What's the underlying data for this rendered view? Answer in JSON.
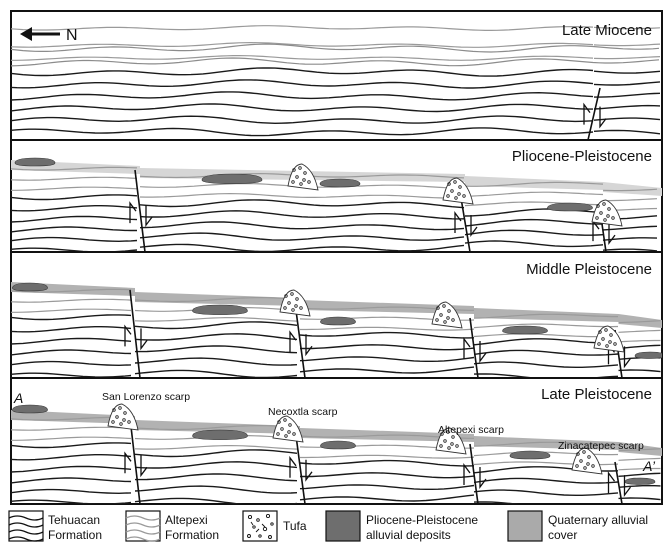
{
  "north_arrow": {
    "label": "N"
  },
  "panels": [
    {
      "title": "Late Miocene"
    },
    {
      "title": "Pliocene-Pleistocene"
    },
    {
      "title": "Middle Pleistocene"
    },
    {
      "title": "Late Pleistocene"
    }
  ],
  "scarps": [
    {
      "label": "San Lorenzo scarp"
    },
    {
      "label": "Necoxtla scarp"
    },
    {
      "label": "Altepexi scarp"
    },
    {
      "label": "Zinacatepec scarp"
    }
  ],
  "section_ends": {
    "start": "A",
    "end": "A’"
  },
  "legend": [
    {
      "line1": "Tehuacan",
      "line2": "Formation",
      "symbol": "dark-wavy-lines"
    },
    {
      "line1": "Altepexi",
      "line2": "Formation",
      "symbol": "gray-wavy-lines"
    },
    {
      "line1": "Tufa",
      "line2": "",
      "symbol": "tufa-dots"
    },
    {
      "line1": "Pliocene-Pleistocene",
      "line2": "alluvial deposits",
      "symbol": "dark-gray-fill",
      "color": "#6e6e6e"
    },
    {
      "line1": "Quaternary alluvial",
      "line2": "cover",
      "symbol": "light-gray-fill",
      "color": "#aaaaaa"
    }
  ]
}
